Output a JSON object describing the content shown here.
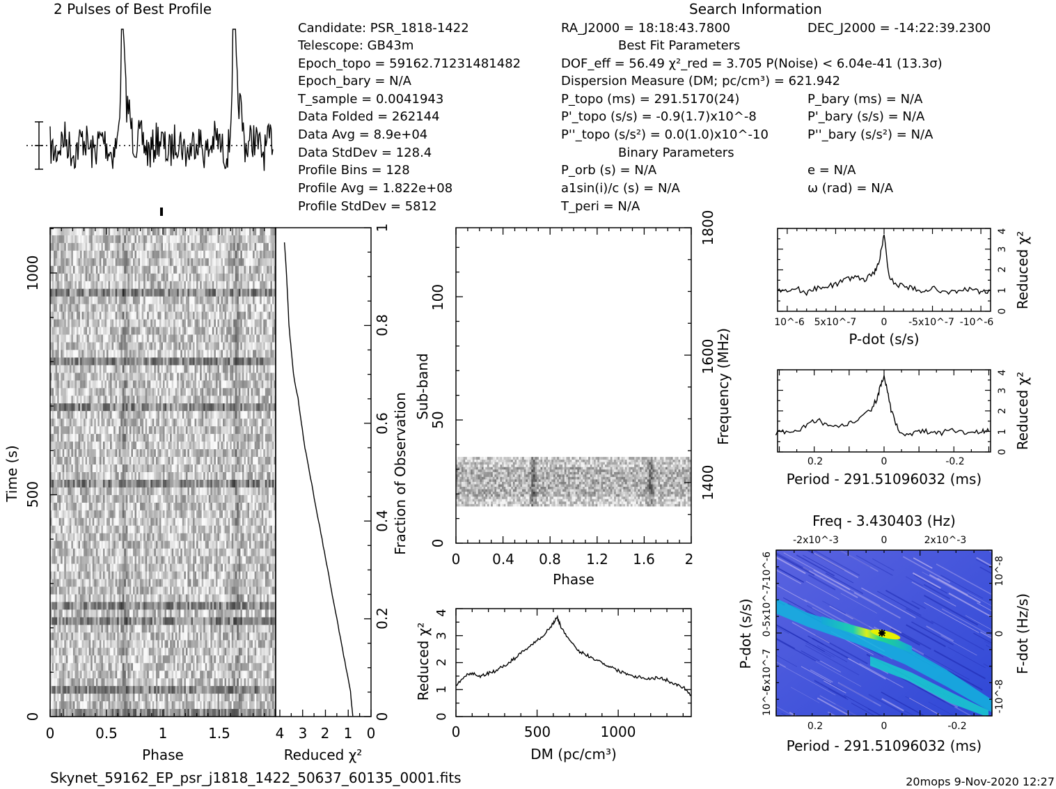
{
  "header": {
    "profile_title": "2 Pulses of Best Profile",
    "search_title": "Search Information",
    "best_fit_title": "Best Fit Parameters",
    "binary_title": "Binary Parameters"
  },
  "info": {
    "candidate": "Candidate:  PSR_1818-1422",
    "telescope": "Telescope:  GB43m",
    "epoch_topo": "Epoch_topo = 59162.71231481482",
    "epoch_bary": "Epoch_bary = N/A",
    "t_sample": "T_sample  =  0.0041943",
    "data_folded": "Data Folded  =  262144",
    "data_avg": "Data Avg  =  8.9e+04",
    "data_stddev": "Data StdDev  =  128.4",
    "profile_bins": "Profile Bins  =  128",
    "profile_avg": "Profile Avg  =  1.822e+08",
    "profile_stddev": "Profile StdDev  =  5812"
  },
  "search": {
    "ra": "RA_J2000 = 18:18:43.7800",
    "dec": "DEC_J2000 = -14:22:39.2300",
    "dof_chi": "DOF_eff = 56.49  χ²_red = 3.705  P(Noise) < 6.04e-41  (13.3σ)",
    "dm": "Dispersion Measure (DM; pc/cm³) = 621.942",
    "p_topo": "P_topo (ms) =  291.5170(24)",
    "p_bary": "P_bary (ms) = N/A",
    "pdot_topo": "P'_topo (s/s) = -0.9(1.7)x10^-8",
    "pdot_bary": "P'_bary (s/s) = N/A",
    "pddot_topo": "P''_topo (s/s²) = 0.0(1.0)x10^-10",
    "pddot_bary": "P''_bary (s/s²) = N/A",
    "p_orb": "P_orb (s) = N/A",
    "a1sini": "a1sin(i)/c (s) = N/A",
    "t_peri": "T_peri = N/A",
    "e": "e = N/A",
    "omega": "ω (rad) = N/A"
  },
  "footer": {
    "filename": "Skynet_59162_EP_psr_j1818_1422_50637_60135_0001.fits",
    "stamp": "20mops  9-Nov-2020 12:27"
  },
  "colors": {
    "ink": "#000000",
    "ppdot_background": "#3a4fd8",
    "ppdot_peak": "#e8f000"
  },
  "chart_data": [
    {
      "type": "line",
      "title": "2 Pulses of Best Profile",
      "xlabel": "",
      "ylabel": "",
      "xlim": [
        0,
        2
      ],
      "peaks_phase": [
        0.65,
        1.65
      ],
      "note": "profile shown twice (2 pulses)"
    },
    {
      "type": "heatmap",
      "xlabel": "Phase",
      "ylabel": "Time (s)",
      "xlim": [
        0,
        2
      ],
      "ylim": [
        0,
        1130
      ],
      "x_ticks": [
        "0",
        "0.5",
        "1",
        "1.5"
      ],
      "y_ticks": [
        "0",
        "500",
        "1000"
      ]
    },
    {
      "type": "line",
      "xlabel": "Reduced χ²",
      "ylabel": "Fraction of Observation",
      "xlim": [
        4,
        0
      ],
      "ylim": [
        0,
        1
      ],
      "x_ticks": [
        "4",
        "3",
        "2",
        "1",
        "0"
      ],
      "y_ticks": [
        "0",
        "0.2",
        "0.4",
        "0.6",
        "0.8",
        "1"
      ],
      "x": [
        0.8,
        0.9,
        1.1,
        1.3,
        1.5,
        1.7,
        1.9,
        2.1,
        2.3,
        2.5,
        2.7,
        2.9,
        3.05,
        3.2,
        3.4,
        3.5,
        3.6,
        3.65,
        3.7,
        3.8
      ],
      "y": [
        0.0,
        0.05,
        0.1,
        0.15,
        0.2,
        0.25,
        0.3,
        0.35,
        0.4,
        0.45,
        0.5,
        0.55,
        0.6,
        0.65,
        0.7,
        0.75,
        0.8,
        0.85,
        0.9,
        0.97
      ]
    },
    {
      "type": "heatmap",
      "xlabel": "Phase",
      "ylabel": "Sub-band",
      "y2label": "Frequency (MHz)",
      "xlim": [
        0,
        2
      ],
      "ylim": [
        0,
        128
      ],
      "x_ticks": [
        "0",
        "0.4",
        "0.8",
        "1.2",
        "1.6",
        "2"
      ],
      "y_ticks": [
        "0",
        "50",
        "100"
      ],
      "y2_ticks": [
        "1400",
        "1600",
        "1800"
      ],
      "data_subbands": [
        15,
        35
      ]
    },
    {
      "type": "line",
      "xlabel": "DM (pc/cm³)",
      "ylabel": "Reduced χ²",
      "xlim": [
        0,
        1450
      ],
      "ylim": [
        0,
        4
      ],
      "x_ticks": [
        "0",
        "500",
        "1000"
      ],
      "y_ticks": [
        "0",
        "1",
        "2",
        "3",
        "4"
      ],
      "x": [
        0,
        50,
        100,
        150,
        200,
        250,
        300,
        350,
        400,
        450,
        500,
        550,
        600,
        622,
        650,
        700,
        750,
        800,
        850,
        900,
        950,
        1000,
        1050,
        1100,
        1150,
        1200,
        1250,
        1300,
        1350,
        1400,
        1450
      ],
      "y": [
        1.1,
        1.5,
        1.6,
        1.5,
        1.6,
        1.7,
        1.9,
        2.1,
        2.35,
        2.6,
        2.8,
        3.1,
        3.45,
        3.7,
        3.3,
        2.8,
        2.45,
        2.3,
        2.15,
        2.0,
        1.85,
        1.7,
        1.6,
        1.5,
        1.45,
        1.4,
        1.45,
        1.35,
        1.2,
        1.1,
        0.8
      ]
    },
    {
      "type": "line",
      "xlabel": "P-dot (s/s)",
      "ylabel": "Reduced χ²",
      "xlim": [
        1.1e-06,
        -1.1e-06
      ],
      "ylim": [
        0,
        4
      ],
      "x_ticks": [
        "10^-6",
        "5x10^-7",
        "0",
        "-5x10^-7",
        "-10^-6"
      ],
      "y_ticks": [
        "0",
        "1",
        "2",
        "3",
        "4"
      ],
      "x": [
        1.1e-06,
        1e-06,
        9e-07,
        8e-07,
        7e-07,
        6e-07,
        5e-07,
        4e-07,
        3e-07,
        2e-07,
        1e-07,
        5e-08,
        0,
        -5e-08,
        -1e-07,
        -2e-07,
        -3e-07,
        -4e-07,
        -5e-07,
        -6e-07,
        -7e-07,
        -8e-07,
        -9e-07,
        -1e-06,
        -1.1e-06
      ],
      "y": [
        1.0,
        1.0,
        1.1,
        0.9,
        1.1,
        1.2,
        1.3,
        1.5,
        1.7,
        1.5,
        1.9,
        2.4,
        3.7,
        1.8,
        1.3,
        1.2,
        1.1,
        1.0,
        1.1,
        1.0,
        0.9,
        1.0,
        1.1,
        0.9,
        1.0
      ]
    },
    {
      "type": "line",
      "xlabel": "Period - 291.51096032 (ms)",
      "ylabel": "Reduced χ²",
      "xlim": [
        0.31,
        -0.3
      ],
      "ylim": [
        0,
        4
      ],
      "x_ticks": [
        "0.2",
        "0",
        "-0.2"
      ],
      "y_ticks": [
        "0",
        "1",
        "2",
        "3",
        "4"
      ],
      "x": [
        0.31,
        0.28,
        0.25,
        0.22,
        0.19,
        0.16,
        0.13,
        0.1,
        0.07,
        0.04,
        0.02,
        0.01,
        0.0,
        -0.01,
        -0.02,
        -0.04,
        -0.07,
        -0.1,
        -0.13,
        -0.16,
        -0.19,
        -0.22,
        -0.25,
        -0.28,
        -0.3
      ],
      "y": [
        0.9,
        1.0,
        1.0,
        1.3,
        1.6,
        1.2,
        1.2,
        1.4,
        1.6,
        2.0,
        2.6,
        3.2,
        3.7,
        2.9,
        2.0,
        1.1,
        0.8,
        1.0,
        1.0,
        0.9,
        1.1,
        1.0,
        0.9,
        1.0,
        1.0
      ]
    },
    {
      "type": "heatmap",
      "title": "Freq - 3.430403 (Hz)",
      "xlabel": "Period - 291.51096032 (ms)",
      "ylabel": "P-dot (s/s)",
      "y2label": "F-dot (Hz/s)",
      "x_ticks": [
        "0.2",
        "0",
        "-0.2"
      ],
      "x2_ticks": [
        "-2x10^-3",
        "0",
        "2x10^-3"
      ],
      "y_ticks": [
        "-10^-6",
        "-5x10^-7",
        "0",
        "5x10^-7",
        "10^-6"
      ],
      "y2_ticks": [
        "10^-8",
        "0",
        "-10^-8"
      ],
      "peak": {
        "period_offset_ms": 0.01,
        "pdot": 0
      }
    }
  ]
}
